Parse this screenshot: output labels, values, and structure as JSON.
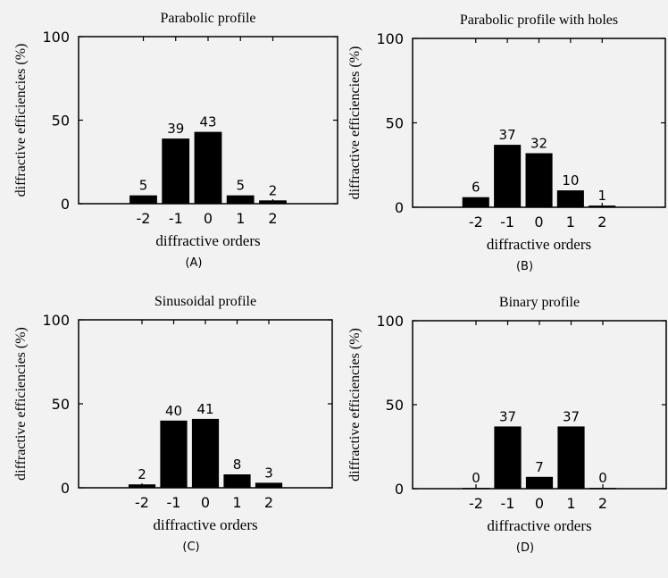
{
  "colors": {
    "background": "#f2f2f2",
    "bar": "#000000",
    "axis": "#000000"
  },
  "chart_data": [
    {
      "type": "bar",
      "title": "Parabolic profile",
      "panel_label": "(A)",
      "xlabel": "diffractive orders",
      "ylabel": "diffractive efficiencies (%)",
      "categories": [
        "-2",
        "-1",
        "0",
        "1",
        "2"
      ],
      "values": [
        5,
        39,
        43,
        5,
        2
      ],
      "data_labels": [
        "5",
        "39",
        "43",
        "5",
        "2"
      ],
      "ylim": [
        0,
        100
      ],
      "xlim": [
        -4,
        4
      ],
      "yticks": [
        "0",
        "50",
        "100"
      ],
      "grid": false
    },
    {
      "type": "bar",
      "title": "Parabolic profile with holes",
      "panel_label": "(B)",
      "xlabel": "diffractive orders",
      "ylabel": "diffractive efficiencies (%)",
      "categories": [
        "-2",
        "-1",
        "0",
        "1",
        "2"
      ],
      "values": [
        6,
        37,
        32,
        10,
        1
      ],
      "data_labels": [
        "6",
        "37",
        "32",
        "10",
        "1"
      ],
      "ylim": [
        0,
        100
      ],
      "xlim": [
        -4,
        4
      ],
      "yticks": [
        "0",
        "50",
        "100"
      ],
      "grid": false
    },
    {
      "type": "bar",
      "title": "Sinusoidal profile",
      "panel_label": "(C)",
      "xlabel": "diffractive orders",
      "ylabel": "diffractive efficiencies (%)",
      "categories": [
        "-2",
        "-1",
        "0",
        "1",
        "2"
      ],
      "values": [
        2,
        40,
        41,
        8,
        3
      ],
      "data_labels": [
        "2",
        "40",
        "41",
        "8",
        "3"
      ],
      "ylim": [
        0,
        100
      ],
      "xlim": [
        -4,
        4
      ],
      "yticks": [
        "0",
        "50",
        "100"
      ],
      "grid": false
    },
    {
      "type": "bar",
      "title": "Binary profile",
      "panel_label": "(D)",
      "xlabel": "diffractive orders",
      "ylabel": "diffractive efficiencies (%)",
      "categories": [
        "-2",
        "-1",
        "0",
        "1",
        "2"
      ],
      "values": [
        0.5,
        37,
        7,
        37,
        0.5
      ],
      "data_labels": [
        "0",
        "37",
        "7",
        "37",
        "0"
      ],
      "ylim": [
        0,
        100
      ],
      "xlim": [
        -4,
        4
      ],
      "yticks": [
        "0",
        "50",
        "100"
      ],
      "grid": false
    }
  ]
}
